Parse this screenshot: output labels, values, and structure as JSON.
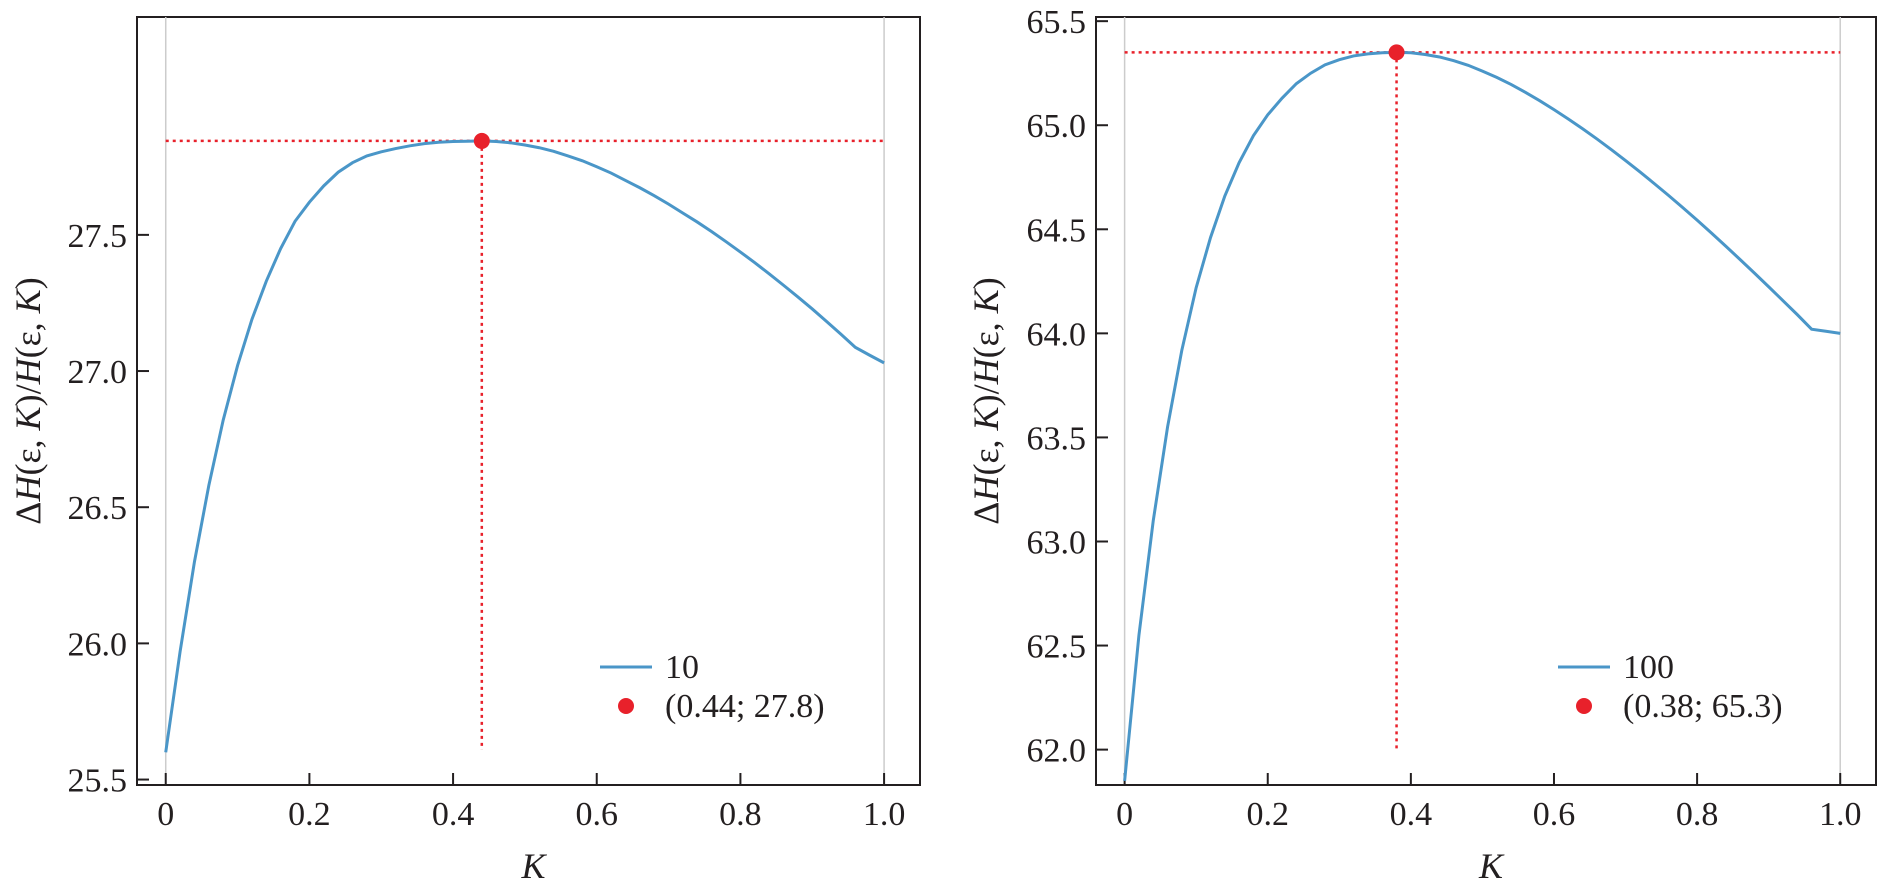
{
  "chart_data": [
    {
      "type": "line",
      "title": "",
      "xlabel": "K",
      "ylabel": "ΔH(ε, K)/H(ε, K)",
      "xlim": [
        -0.04,
        1.05
      ],
      "ylim": [
        25.48,
        28.3
      ],
      "xticks": [
        0,
        0.2,
        0.4,
        0.6,
        0.8,
        1.0
      ],
      "xtick_labels": [
        "0",
        "0.2",
        "0.4",
        "0.6",
        "0.8",
        "1.0"
      ],
      "yticks": [
        25.5,
        26.0,
        26.5,
        27.0,
        27.5
      ],
      "ytick_labels": [
        "25.5",
        "26.0",
        "26.5",
        "27.0",
        "27.5"
      ],
      "grid": false,
      "legend_position": "bottom-right",
      "colors": {
        "line": "#4a96c8",
        "point": "#e8212b",
        "guide": "#e8212b",
        "axis": "#231f20"
      },
      "series": [
        {
          "name": "10",
          "x": [
            0,
            0.02,
            0.04,
            0.06,
            0.08,
            0.1,
            0.12,
            0.14,
            0.16,
            0.18,
            0.2,
            0.22,
            0.24,
            0.26,
            0.28,
            0.3,
            0.32,
            0.34,
            0.36,
            0.38,
            0.4,
            0.42,
            0.44,
            0.46,
            0.48,
            0.5,
            0.52,
            0.54,
            0.56,
            0.58,
            0.6,
            0.62,
            0.64,
            0.66,
            0.68,
            0.7,
            0.72,
            0.74,
            0.76,
            0.78,
            0.8,
            0.82,
            0.84,
            0.86,
            0.88,
            0.9,
            0.92,
            0.94,
            0.96,
            0.98,
            1.0
          ],
          "y": [
            25.6,
            25.97,
            26.3,
            26.58,
            26.82,
            27.02,
            27.19,
            27.33,
            27.45,
            27.55,
            27.62,
            27.68,
            27.73,
            27.765,
            27.79,
            27.805,
            27.817,
            27.827,
            27.835,
            27.84,
            27.843,
            27.844,
            27.845,
            27.843,
            27.838,
            27.83,
            27.82,
            27.807,
            27.79,
            27.772,
            27.75,
            27.727,
            27.7,
            27.673,
            27.644,
            27.613,
            27.58,
            27.547,
            27.512,
            27.475,
            27.437,
            27.398,
            27.357,
            27.315,
            27.272,
            27.228,
            27.182,
            27.135,
            27.087,
            27.058,
            27.03
          ]
        }
      ],
      "optimum": {
        "x": 0.44,
        "y": 27.845,
        "label": "(0.44; 27.8)"
      }
    },
    {
      "type": "line",
      "title": "",
      "xlabel": "K",
      "ylabel": "ΔH(ε, K)/H(ε, K)",
      "xlim": [
        -0.04,
        1.05
      ],
      "ylim": [
        61.83,
        65.52
      ],
      "xticks": [
        0,
        0.2,
        0.4,
        0.6,
        0.8,
        1.0
      ],
      "xtick_labels": [
        "0",
        "0.2",
        "0.4",
        "0.6",
        "0.8",
        "1.0"
      ],
      "yticks": [
        62.0,
        62.5,
        63.0,
        63.5,
        64.0,
        64.5,
        65.0,
        65.5
      ],
      "ytick_labels": [
        "62.0",
        "62.5",
        "63.0",
        "63.5",
        "64.0",
        "64.5",
        "65.0",
        "65.5"
      ],
      "grid": false,
      "legend_position": "bottom-right",
      "colors": {
        "line": "#4a96c8",
        "point": "#e8212b",
        "guide": "#e8212b",
        "axis": "#231f20"
      },
      "series": [
        {
          "name": "100",
          "x": [
            0,
            0.02,
            0.04,
            0.06,
            0.08,
            0.1,
            0.12,
            0.14,
            0.16,
            0.18,
            0.2,
            0.22,
            0.24,
            0.26,
            0.28,
            0.3,
            0.32,
            0.34,
            0.36,
            0.38,
            0.4,
            0.42,
            0.44,
            0.46,
            0.48,
            0.5,
            0.52,
            0.54,
            0.56,
            0.58,
            0.6,
            0.62,
            0.64,
            0.66,
            0.68,
            0.7,
            0.72,
            0.74,
            0.76,
            0.78,
            0.8,
            0.82,
            0.84,
            0.86,
            0.88,
            0.9,
            0.92,
            0.94,
            0.96,
            0.98,
            1.0
          ],
          "y": [
            61.85,
            62.55,
            63.1,
            63.55,
            63.92,
            64.22,
            64.46,
            64.66,
            64.82,
            64.95,
            65.05,
            65.13,
            65.2,
            65.25,
            65.29,
            65.315,
            65.333,
            65.343,
            65.348,
            65.35,
            65.348,
            65.34,
            65.328,
            65.31,
            65.288,
            65.26,
            65.23,
            65.196,
            65.158,
            65.118,
            65.075,
            65.03,
            64.983,
            64.934,
            64.883,
            64.83,
            64.776,
            64.72,
            64.663,
            64.604,
            64.544,
            64.482,
            64.419,
            64.355,
            64.29,
            64.224,
            64.157,
            64.09,
            64.02,
            64.01,
            64.0
          ]
        }
      ],
      "optimum": {
        "x": 0.38,
        "y": 65.35,
        "label": "(0.38; 65.3)"
      }
    }
  ]
}
